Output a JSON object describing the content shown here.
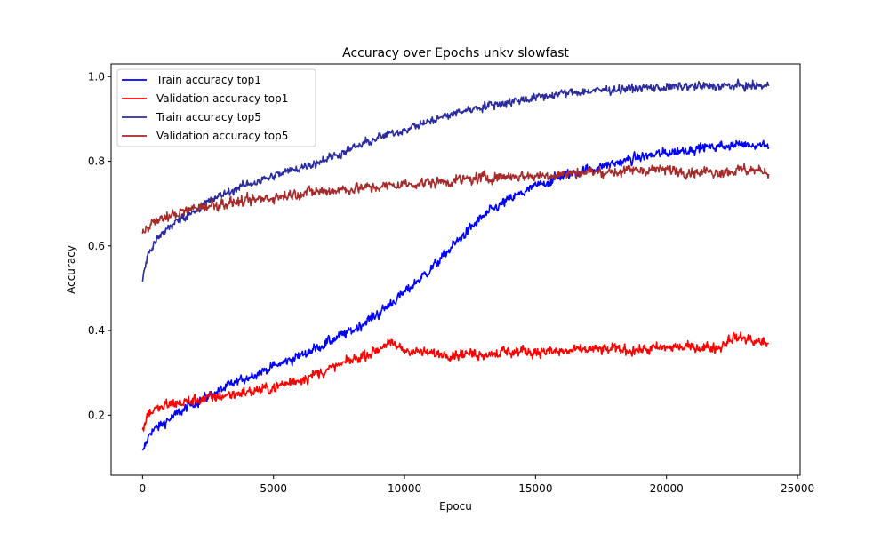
{
  "chart_data": {
    "type": "line",
    "title": "Accuracy over Epochs unkv slowfast",
    "xlabel": "Epocu",
    "ylabel": "Accuracy",
    "xlim": [
      -1200,
      25100
    ],
    "ylim": [
      0.058,
      1.03
    ],
    "xticks": [
      0,
      5000,
      10000,
      15000,
      20000,
      25000
    ],
    "xtick_labels": [
      "0",
      "5000",
      "10000",
      "15000",
      "20000",
      "25000"
    ],
    "yticks": [
      0.2,
      0.4,
      0.6,
      0.8,
      1.0
    ],
    "ytick_labels": [
      "0.2",
      "0.4",
      "0.6",
      "0.8",
      "1.0"
    ],
    "grid": false,
    "legend_position": "top-left",
    "series": [
      {
        "name": "Train accuracy top1",
        "color": "#0000ff",
        "noise": 0.009,
        "x": [
          0,
          300,
          1000,
          2000,
          3000,
          4000,
          5000,
          6000,
          7000,
          8000,
          9000,
          10000,
          11000,
          12000,
          13000,
          14000,
          15000,
          16000,
          17000,
          18000,
          19000,
          20000,
          21000,
          22000,
          23000,
          23900
        ],
        "y": [
          0.11,
          0.16,
          0.19,
          0.23,
          0.26,
          0.29,
          0.315,
          0.34,
          0.37,
          0.4,
          0.44,
          0.49,
          0.545,
          0.61,
          0.67,
          0.71,
          0.74,
          0.765,
          0.78,
          0.795,
          0.81,
          0.82,
          0.83,
          0.835,
          0.84,
          0.84
        ]
      },
      {
        "name": "Validation accuracy top1",
        "color": "#ff0000",
        "noise": 0.01,
        "x": [
          0,
          200,
          1000,
          2000,
          3000,
          4000,
          5000,
          6000,
          7000,
          8000,
          9000,
          9300,
          10000,
          11000,
          12000,
          13000,
          14000,
          15000,
          16000,
          17000,
          18000,
          19000,
          20000,
          21000,
          22000,
          22500,
          23000,
          23900
        ],
        "y": [
          0.16,
          0.205,
          0.225,
          0.235,
          0.245,
          0.255,
          0.265,
          0.285,
          0.305,
          0.33,
          0.355,
          0.37,
          0.355,
          0.345,
          0.345,
          0.345,
          0.35,
          0.35,
          0.35,
          0.355,
          0.355,
          0.355,
          0.36,
          0.36,
          0.36,
          0.385,
          0.38,
          0.37
        ]
      },
      {
        "name": "Train accuracy top5",
        "color": "#2b2ba0",
        "noise": 0.008,
        "x": [
          0,
          200,
          500,
          1000,
          2000,
          3000,
          4000,
          5000,
          6000,
          7000,
          8000,
          9000,
          10000,
          11000,
          12000,
          13000,
          14000,
          15000,
          16000,
          17000,
          18000,
          19000,
          20000,
          21000,
          22000,
          23000,
          23900
        ],
        "y": [
          0.52,
          0.58,
          0.61,
          0.645,
          0.685,
          0.72,
          0.745,
          0.765,
          0.785,
          0.805,
          0.83,
          0.855,
          0.875,
          0.895,
          0.915,
          0.93,
          0.94,
          0.95,
          0.96,
          0.965,
          0.97,
          0.973,
          0.975,
          0.977,
          0.978,
          0.978,
          0.978
        ]
      },
      {
        "name": "Validation accuracy top5",
        "color": "#a52a2a",
        "noise": 0.01,
        "x": [
          0,
          200,
          1000,
          2000,
          3000,
          4000,
          5000,
          6000,
          7000,
          8000,
          9000,
          10000,
          11000,
          12000,
          13000,
          14000,
          15000,
          16000,
          17000,
          18000,
          19000,
          20000,
          21000,
          22000,
          23000,
          23900
        ],
        "y": [
          0.63,
          0.65,
          0.67,
          0.69,
          0.7,
          0.705,
          0.715,
          0.725,
          0.73,
          0.735,
          0.74,
          0.745,
          0.75,
          0.755,
          0.76,
          0.765,
          0.765,
          0.77,
          0.775,
          0.775,
          0.78,
          0.78,
          0.775,
          0.775,
          0.78,
          0.775
        ]
      }
    ]
  }
}
